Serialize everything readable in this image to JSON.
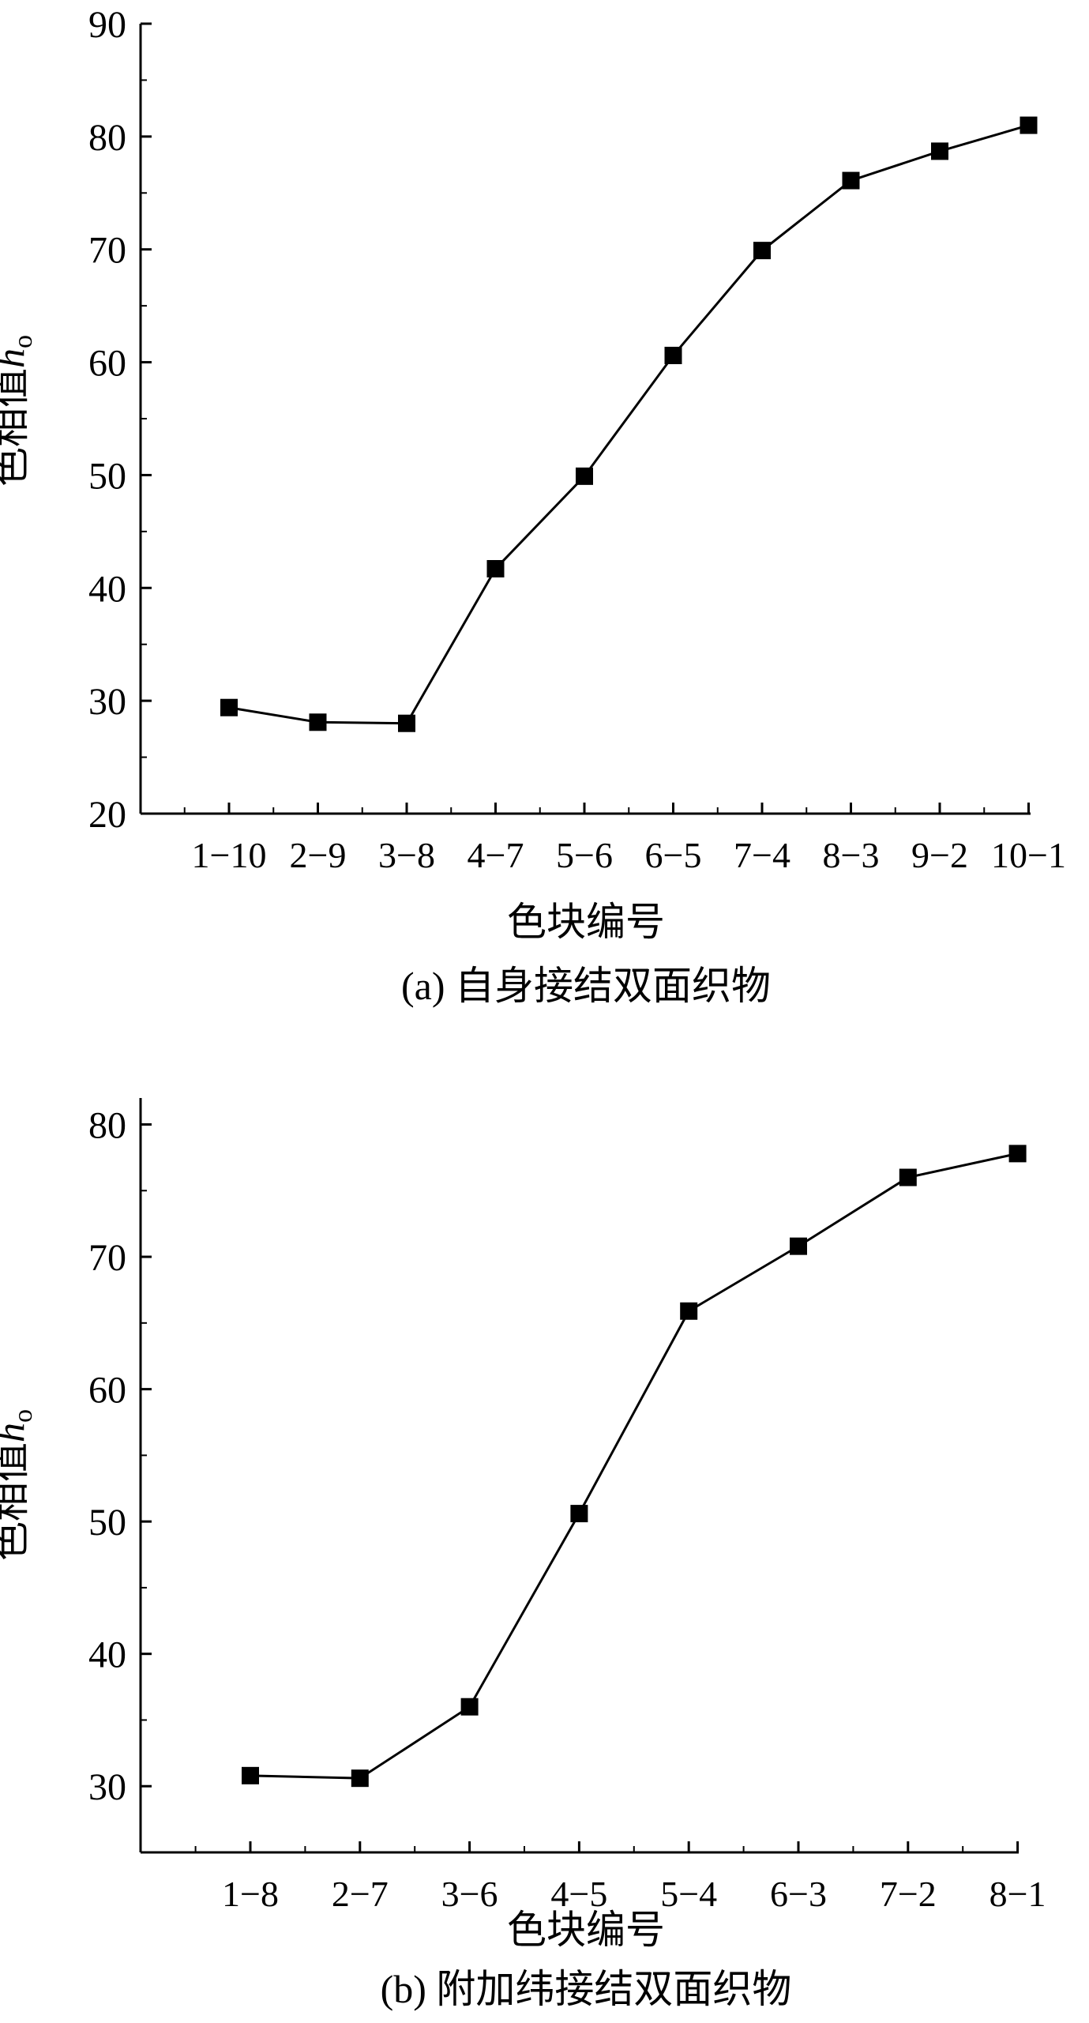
{
  "chart_data": [
    {
      "type": "line",
      "panel": "a",
      "caption": "(a) 自身接结双面织物",
      "xlabel": "色块编号",
      "ylabel_main": "色相值",
      "ylabel_symbol": "h",
      "ylabel_sub": "o",
      "ylim": [
        20,
        90
      ],
      "yticks": [
        "20",
        "30",
        "40",
        "50",
        "60",
        "70",
        "80",
        "90"
      ],
      "categories": [
        "1−10",
        "2−9",
        "3−8",
        "4−7",
        "5−6",
        "6−5",
        "7−4",
        "8−3",
        "9−2",
        "10−1"
      ],
      "series": [
        {
          "values": [
            29.4,
            28.1,
            28.0,
            41.7,
            49.9,
            60.6,
            69.9,
            76.1,
            78.7,
            81.0
          ]
        }
      ],
      "marker": "square",
      "color": "#000000",
      "grid": false
    },
    {
      "type": "line",
      "panel": "b",
      "caption": "(b) 附加纬接结双面织物",
      "xlabel": "色块编号",
      "ylabel_main": "色相值",
      "ylabel_symbol": "h",
      "ylabel_sub": "o",
      "ylim": [
        25,
        82
      ],
      "yticks": [
        "30",
        "40",
        "50",
        "60",
        "70",
        "80"
      ],
      "categories": [
        "1−8",
        "2−7",
        "3−6",
        "4−5",
        "5−4",
        "6−3",
        "7−2",
        "8−1"
      ],
      "series": [
        {
          "values": [
            30.8,
            30.6,
            36.0,
            50.6,
            65.9,
            70.8,
            76.0,
            77.8
          ]
        }
      ],
      "marker": "square",
      "color": "#000000",
      "grid": false
    }
  ]
}
